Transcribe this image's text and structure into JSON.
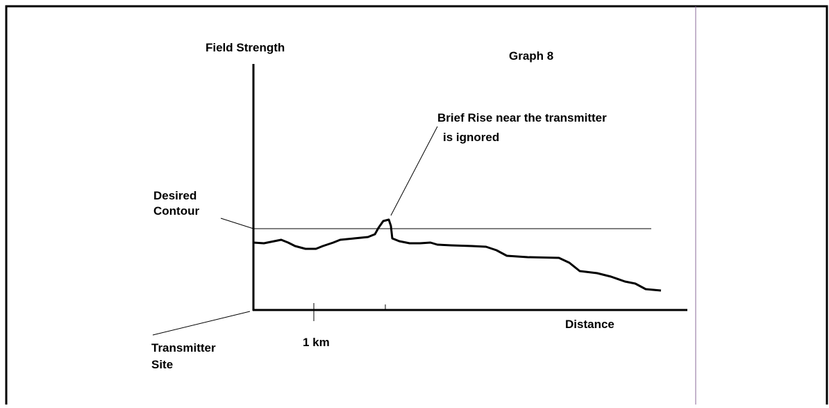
{
  "title": "Graph 8",
  "y_axis_label": "Field Strength",
  "x_axis_label": "Distance",
  "annotation": {
    "line1": "Brief Rise near the transmitter",
    "line2": "is ignored"
  },
  "contour_label": {
    "line1": "Desired",
    "line2": "Contour"
  },
  "origin_label": {
    "line1": "Transmitter",
    "line2": "Site"
  },
  "tick_label": "1 km"
}
